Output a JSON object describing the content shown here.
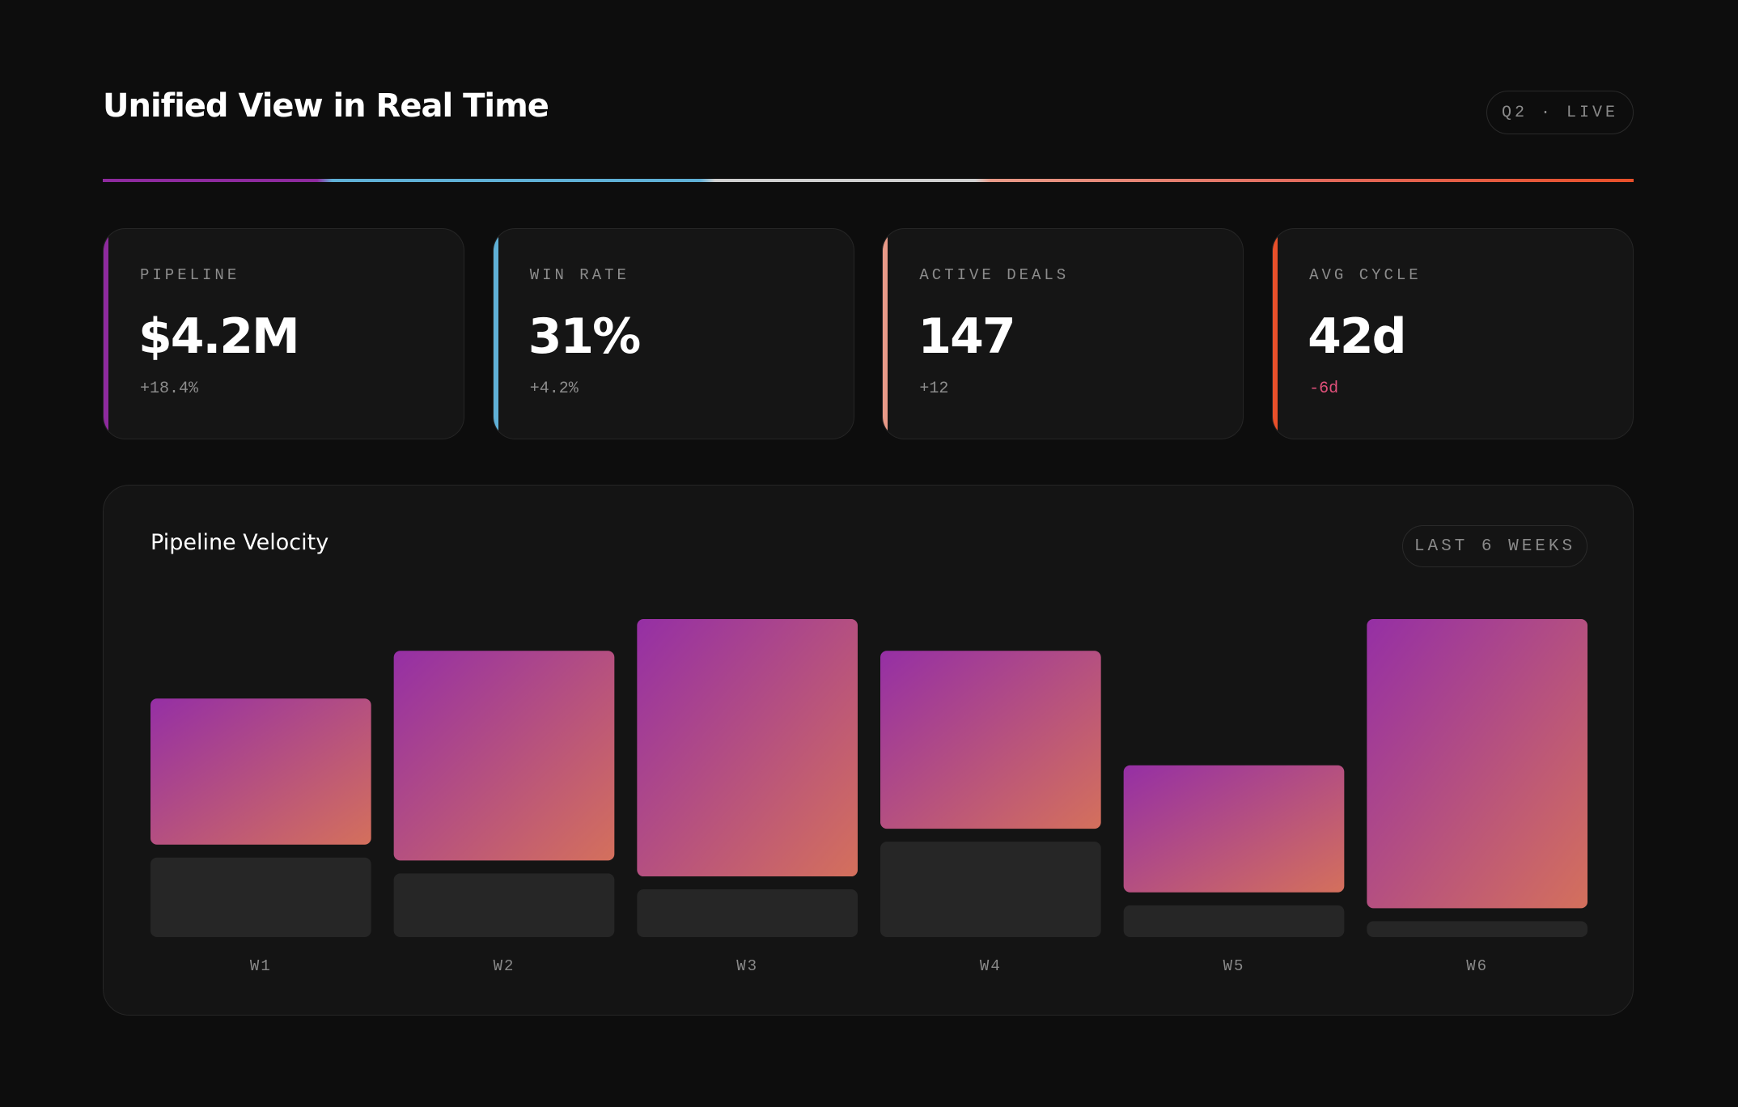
{
  "header": {
    "title": "Unified View in Real Time",
    "badge": "Q2 · LIVE"
  },
  "kpis": [
    {
      "label": "PIPELINE",
      "value": "$4.2M",
      "delta": "+18.4%",
      "accent": "#8e2a9e",
      "delta_color": "#8c8c8c"
    },
    {
      "label": "WIN RATE",
      "value": "31%",
      "delta": "+4.2%",
      "accent": "#5fb0d6",
      "delta_color": "#8c8c8c"
    },
    {
      "label": "ACTIVE DEALS",
      "value": "147",
      "delta": "+12",
      "accent": "#e89a88",
      "delta_color": "#8c8c8c"
    },
    {
      "label": "AVG CYCLE",
      "value": "42d",
      "delta": "-6d",
      "accent": "#e8502a",
      "delta_color": "#e0507a"
    }
  ],
  "chart_data": {
    "type": "bar",
    "stacked": true,
    "title": "Pipeline Velocity",
    "badge": "LAST 6 WEEKS",
    "categories": [
      "W1",
      "W2",
      "W3",
      "W4",
      "W5",
      "W6"
    ],
    "ylim": [
      0,
      100
    ],
    "series": [
      {
        "color": "#262626",
        "values": [
          25,
          20,
          15,
          30,
          10,
          5
        ]
      },
      {
        "color": "#952fa5",
        "color_end": "#d4705c",
        "values": [
          50,
          70,
          85,
          60,
          44,
          95
        ]
      }
    ]
  }
}
